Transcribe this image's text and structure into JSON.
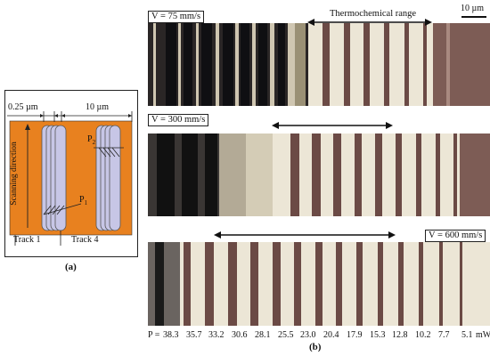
{
  "panel_a": {
    "caption": "(a)",
    "spacing_label": "0.25 µm",
    "width_label": "10 µm",
    "scan_label": "Scanning direction",
    "p2_label": "P",
    "p2_sub": "2",
    "p1_label": "P",
    "p1_sub": "1",
    "track1_label": "Track 1",
    "track4_label": "Track 4",
    "colors": {
      "substrate": "#e8811f",
      "track": "#c7c6e6"
    }
  },
  "panel_b": {
    "caption": "(b)",
    "thermo_label": "Thermochemical range",
    "scalebar_label": "10 µm",
    "strips": [
      {
        "speed_label": "V = 75 mm/s"
      },
      {
        "speed_label": "V = 300 mm/s"
      },
      {
        "speed_label": "V = 600 mm/s"
      }
    ],
    "power_prefix": "P =",
    "power_unit": "mW",
    "powers": [
      "38.3",
      "35.7",
      "33.2",
      "30.6",
      "28.1",
      "25.5",
      "23.0",
      "20.4",
      "17.9",
      "15.3",
      "12.8",
      "10.2",
      "7.7",
      "5.1"
    ],
    "colors": {
      "dark_line": "#6b4a45",
      "substrate": "#8a6b62",
      "ablated": "#1a1a1c",
      "light": "#ece6d6"
    }
  }
}
